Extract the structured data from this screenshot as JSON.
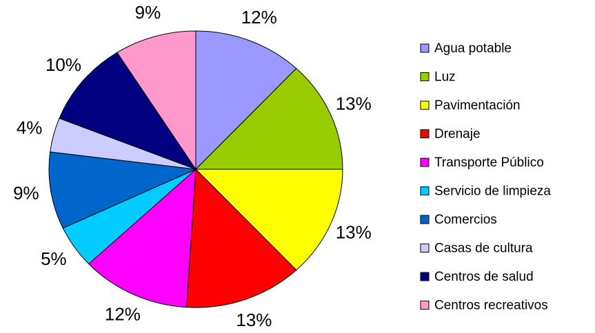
{
  "chart_data": {
    "type": "pie",
    "categories": [
      "Agua potable",
      "Luz",
      "Pavimentación",
      "Drenaje",
      "Transporte Público",
      "Servicio de limpieza",
      "Comercios",
      "Casas de cultura",
      "Centros de salud",
      "Centros recreativos"
    ],
    "values": [
      12,
      13,
      13,
      13,
      12,
      5,
      9,
      4,
      10,
      9
    ],
    "value_labels": [
      "12%",
      "13%",
      "13%",
      "13%",
      "12%",
      "5%",
      "9%",
      "4%",
      "10%",
      "9%"
    ],
    "colors": [
      "#9999ff",
      "#99cc00",
      "#ffff00",
      "#ff0000",
      "#ff00ff",
      "#00ccff",
      "#0066cc",
      "#ccccff",
      "#000080",
      "#ff99cc"
    ],
    "legend": "right"
  }
}
